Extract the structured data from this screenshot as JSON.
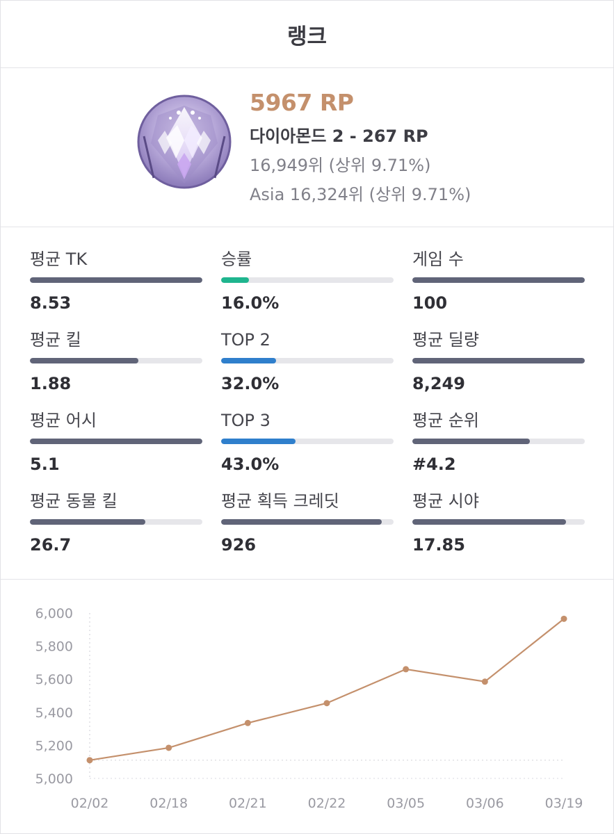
{
  "header": {
    "title": "랭크"
  },
  "summary": {
    "rp": "5967 RP",
    "tier": "다이아몬드 2 - 267 RP",
    "rank_global": "16,949위 (상위 9.71%)",
    "rank_region": "Asia 16,324위 (상위 9.71%)",
    "emblem_icon": "diamond-rank-emblem-icon"
  },
  "colors": {
    "rp": "#c4906c",
    "bar_default": "#606478",
    "bar_winrate": "#1fb58e",
    "bar_top": "#2f7fcc",
    "bar_track": "#e6e6ea",
    "chart_line": "#c4906c"
  },
  "stats": [
    {
      "label": "평균 TK",
      "value": "8.53",
      "fill": 1.0,
      "color": "#606478"
    },
    {
      "label": "승률",
      "value": "16.0%",
      "fill": 0.16,
      "color": "#1fb58e"
    },
    {
      "label": "게임 수",
      "value": "100",
      "fill": 1.0,
      "color": "#606478"
    },
    {
      "label": "평균 킬",
      "value": "1.88",
      "fill": 0.63,
      "color": "#606478"
    },
    {
      "label": "TOP 2",
      "value": "32.0%",
      "fill": 0.32,
      "color": "#2f7fcc"
    },
    {
      "label": "평균 딜량",
      "value": "8,249",
      "fill": 1.0,
      "color": "#606478"
    },
    {
      "label": "평균 어시",
      "value": "5.1",
      "fill": 1.0,
      "color": "#606478"
    },
    {
      "label": "TOP 3",
      "value": "43.0%",
      "fill": 0.43,
      "color": "#2f7fcc"
    },
    {
      "label": "평균 순위",
      "value": "#4.2",
      "fill": 0.68,
      "color": "#606478"
    },
    {
      "label": "평균 동물 킬",
      "value": "26.7",
      "fill": 0.67,
      "color": "#606478"
    },
    {
      "label": "평균 획득 크레딧",
      "value": "926",
      "fill": 0.93,
      "color": "#606478"
    },
    {
      "label": "평균 시야",
      "value": "17.85",
      "fill": 0.89,
      "color": "#606478"
    }
  ],
  "chart_data": {
    "type": "line",
    "title": "",
    "xlabel": "",
    "ylabel": "",
    "categories": [
      "02/02",
      "02/18",
      "02/21",
      "02/22",
      "03/05",
      "03/06",
      "03/19"
    ],
    "series": [
      {
        "values": [
          5110,
          5185,
          5335,
          5455,
          5660,
          5585,
          5965
        ]
      }
    ],
    "ylim": [
      5000,
      6000
    ],
    "yticks": [
      5000,
      5200,
      5400,
      5600,
      5800,
      6000
    ],
    "ytick_labels": [
      "5,000",
      "5,200",
      "5,400",
      "5,600",
      "5,800",
      "6,000"
    ],
    "grid": "dotted-vertical-and-baseline",
    "legend": "none"
  }
}
